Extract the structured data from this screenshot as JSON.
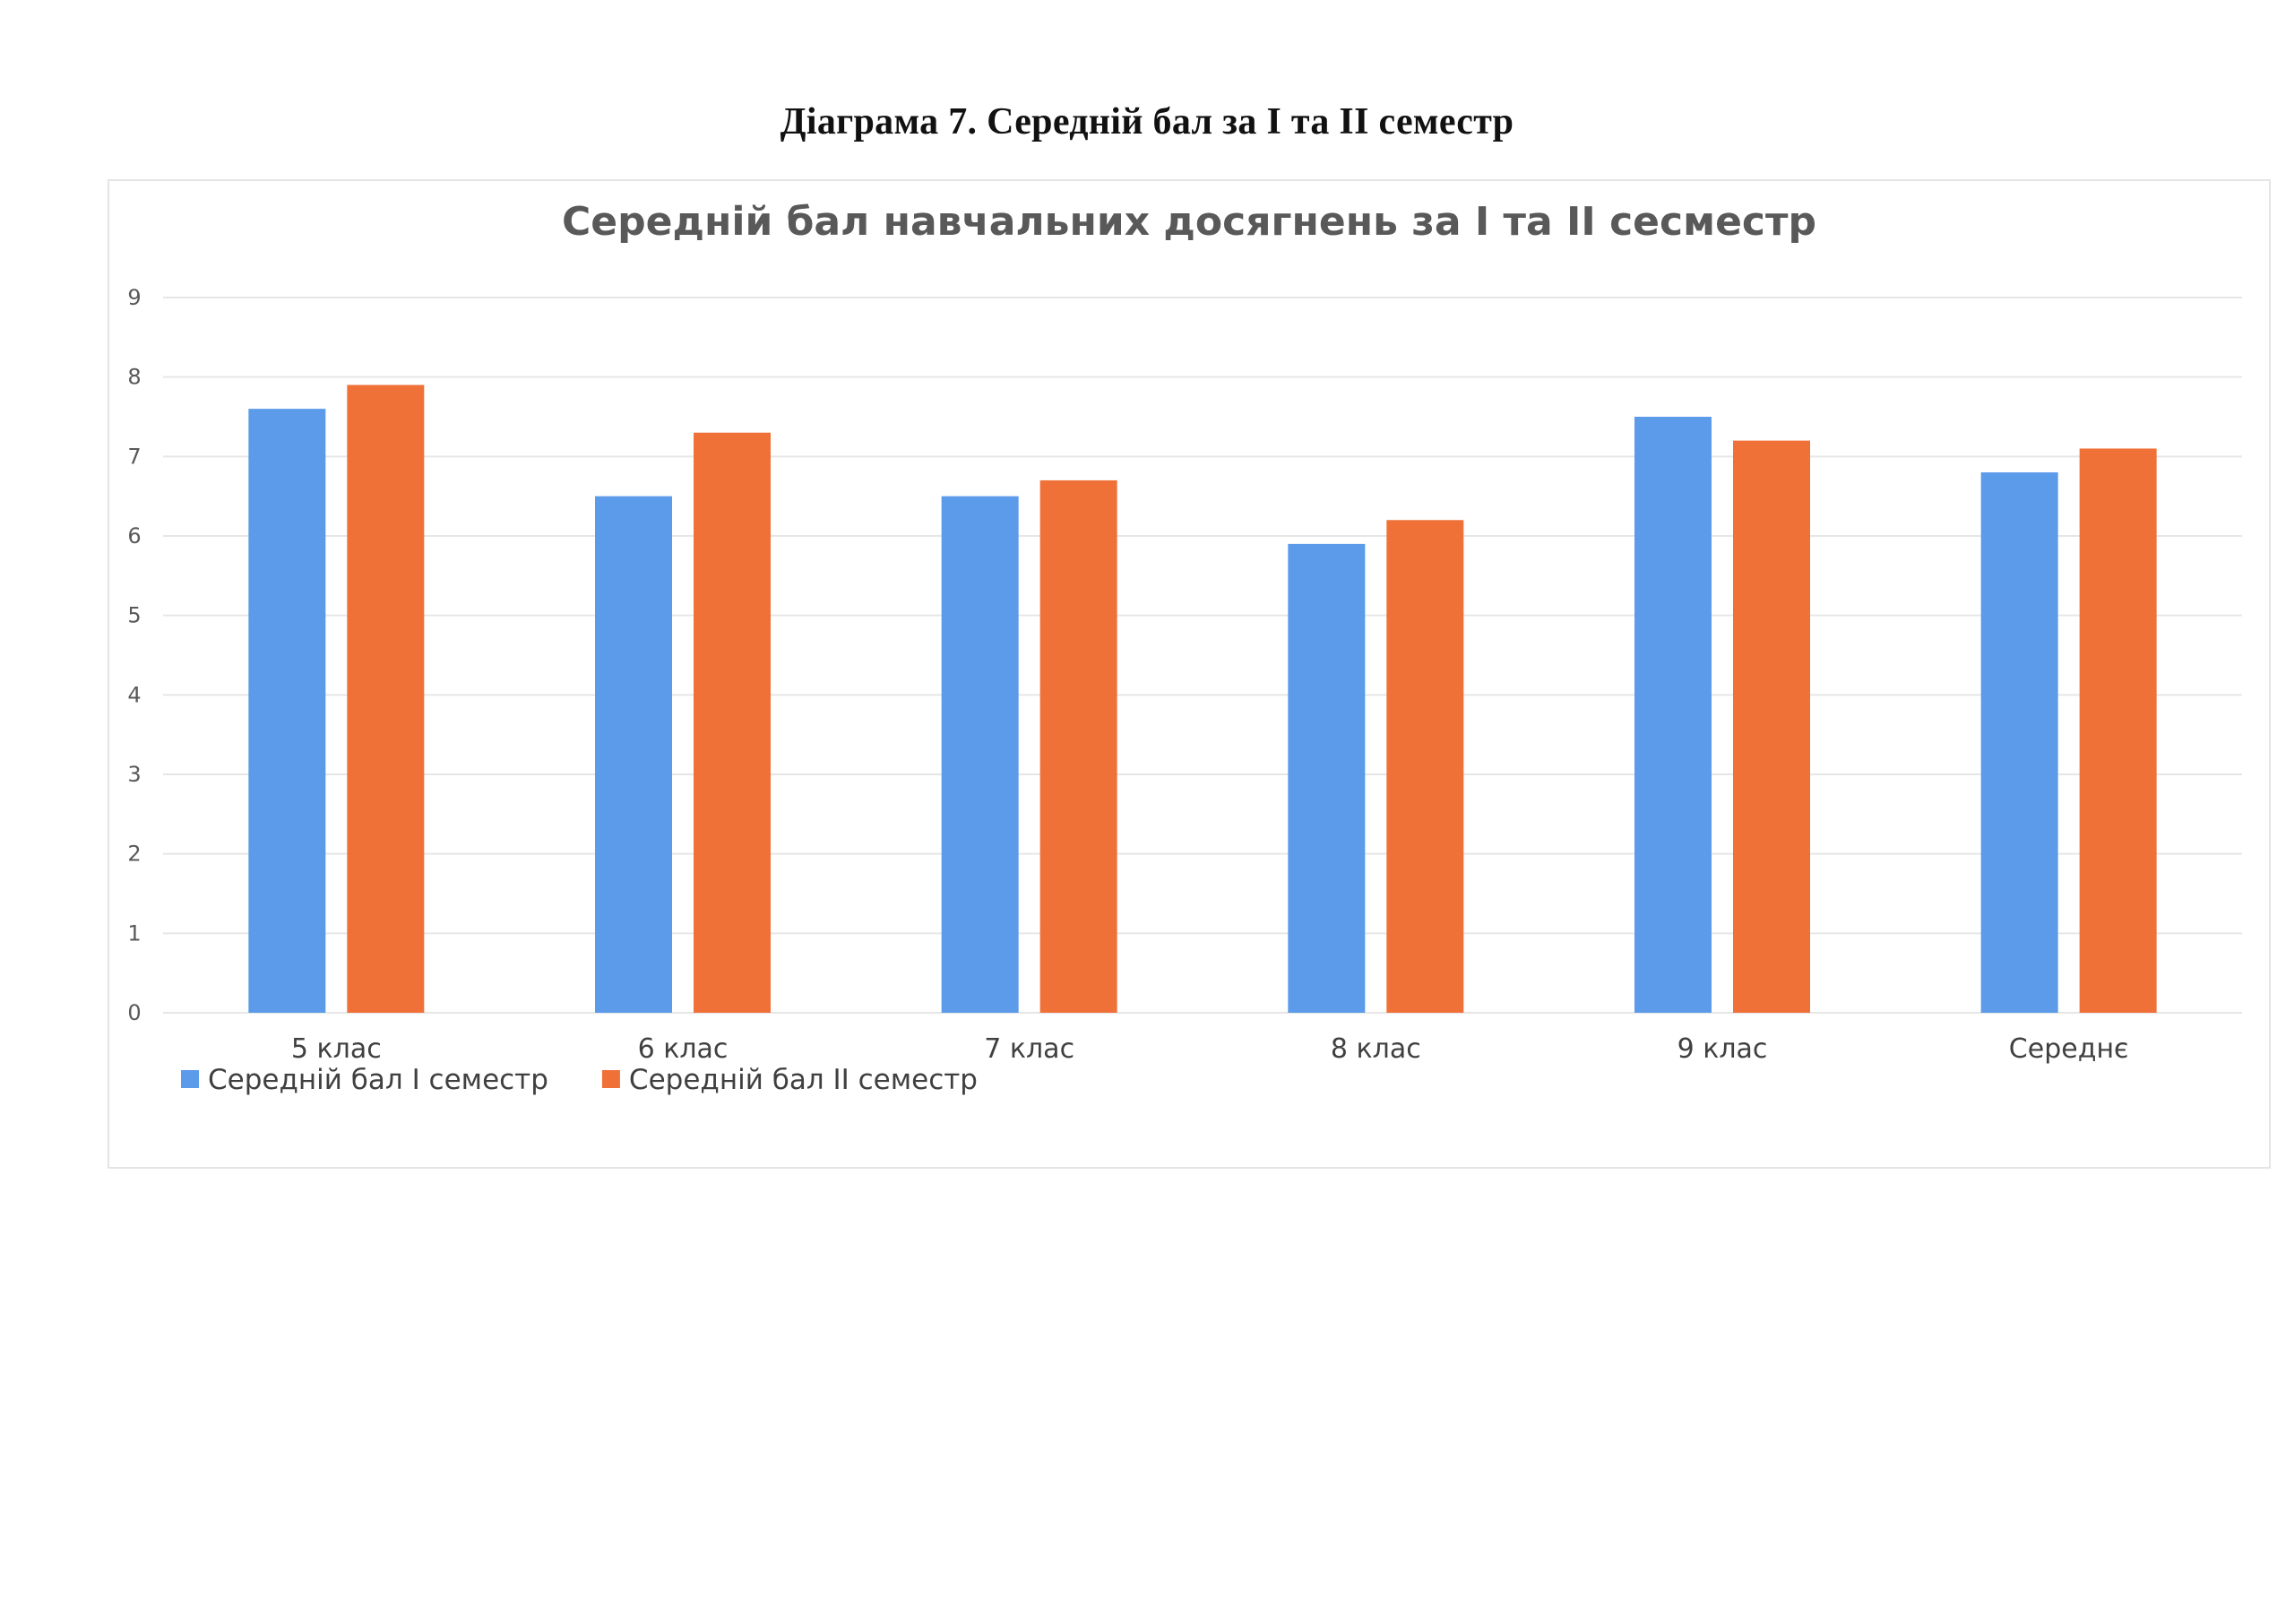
{
  "caption": "Діаграма 7. Середній бал за І та ІІ семестр",
  "chart_data": {
    "type": "bar",
    "title": "Середній бал навчальних досягнень за І та ІІ сесместр",
    "xlabel": "",
    "ylabel": "",
    "ylim": [
      0,
      9
    ],
    "yticks": [
      0,
      1,
      2,
      3,
      4,
      5,
      6,
      7,
      8,
      9
    ],
    "grid": true,
    "legend_position": "bottom-left",
    "categories": [
      "5 клас",
      "6 клас",
      "7 клас",
      "8 клас",
      "9 клас",
      "Середнє"
    ],
    "series": [
      {
        "name": "Середній бал І семестр",
        "color": "#5B9BEA",
        "values": [
          7.6,
          6.5,
          6.5,
          5.9,
          7.5,
          6.8
        ]
      },
      {
        "name": "Середній бал ІІ семестр",
        "color": "#F07138",
        "values": [
          7.9,
          7.3,
          6.7,
          6.2,
          7.2,
          7.1
        ]
      }
    ]
  }
}
